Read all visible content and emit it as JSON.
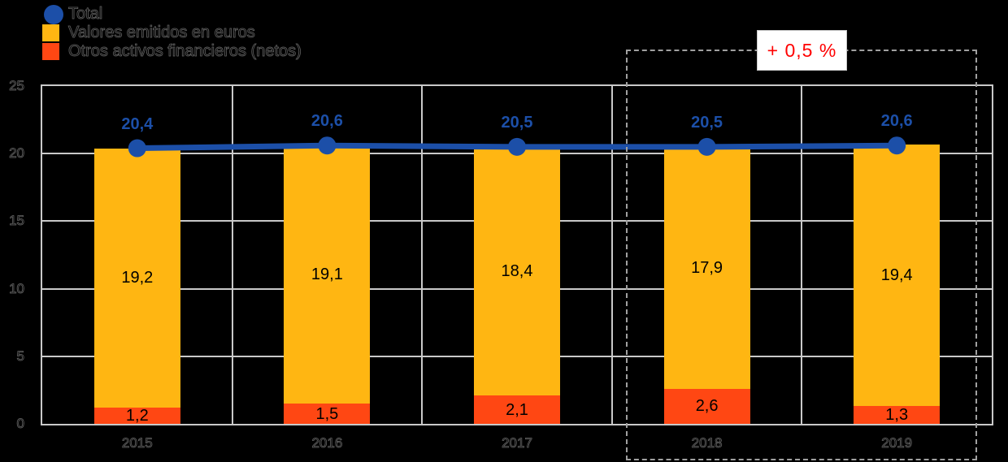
{
  "chart_data": {
    "type": "bar",
    "subtype": "stacked-bars-with-total-line",
    "categories": [
      "2015",
      "2016",
      "2017",
      "2018",
      "2019"
    ],
    "series": [
      {
        "name": "Otros activos financieros (netos)",
        "color": "#FF4713",
        "values": [
          1.2,
          1.5,
          2.1,
          2.6,
          1.3
        ]
      },
      {
        "name": "Valores emitidos en euros",
        "color": "#FFB612",
        "values": [
          19.2,
          19.1,
          18.4,
          17.9,
          19.4
        ]
      }
    ],
    "line": {
      "name": "Total",
      "color": "#1C4FA8",
      "values": [
        20.4,
        20.6,
        20.5,
        20.5,
        20.6
      ]
    },
    "ylim": [
      0,
      25
    ],
    "yticks": [
      0,
      5,
      10,
      15,
      20,
      25
    ],
    "grid": true,
    "legend_position": "top-left",
    "decimal_separator": ",",
    "highlight": {
      "categories": [
        "2018",
        "2019"
      ],
      "label": "+ 0,5 %",
      "label_color": "#FF0000"
    }
  },
  "legend": {
    "items": [
      {
        "label": "Total",
        "marker": "circle",
        "color": "#1C4FA8"
      },
      {
        "label": "Valores emitidos en euros",
        "marker": "square",
        "color": "#FFB612"
      },
      {
        "label": "Otros activos financieros (netos)",
        "marker": "square",
        "color": "#FF4713"
      }
    ]
  },
  "annotation": {
    "label": "+ 0,5 %"
  }
}
